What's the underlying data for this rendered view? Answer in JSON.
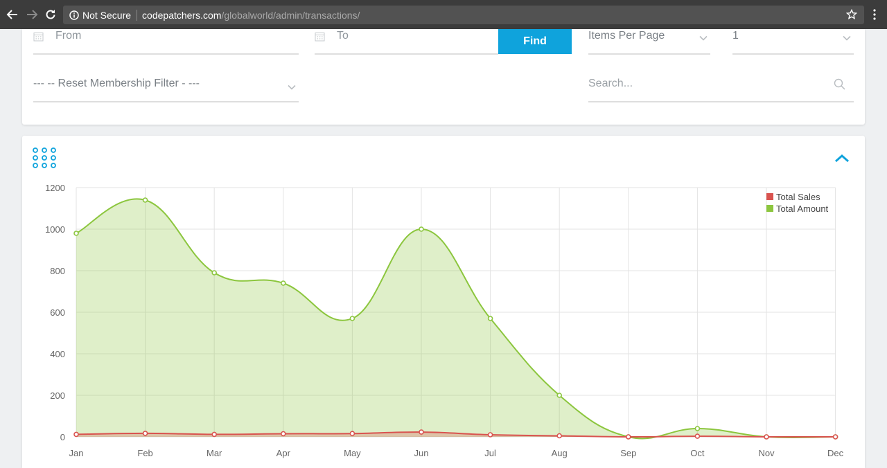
{
  "browser": {
    "secure_label": "Not Secure",
    "url_host": "codepatchers.com",
    "url_path": "/globalworld/admin/transactions/"
  },
  "filters": {
    "from_placeholder": "From",
    "to_placeholder": "To",
    "find_label": "Find",
    "items_per_page_label": "Items Per Page",
    "page_value": "1",
    "membership_filter": "--- -- Reset Membership Filter - ---",
    "search_placeholder": "Search..."
  },
  "colors": {
    "accent": "#0fa3dc",
    "total_sales": "#d9534f",
    "total_amount": "#8cc63e"
  },
  "icons": [
    "back-icon",
    "forward-icon",
    "reload-icon",
    "info-icon",
    "star-icon",
    "menu-icon",
    "calendar-icon",
    "chevron-down-icon",
    "search-icon",
    "grid-icon",
    "chevron-up-icon"
  ],
  "chart_data": {
    "type": "area",
    "categories": [
      "Jan",
      "Feb",
      "Mar",
      "Apr",
      "May",
      "Jun",
      "Jul",
      "Aug",
      "Sep",
      "Oct",
      "Nov",
      "Dec"
    ],
    "series": [
      {
        "name": "Total Sales",
        "color": "#d9534f",
        "values": [
          12,
          17,
          12,
          15,
          16,
          23,
          10,
          5,
          0,
          3,
          0,
          0
        ]
      },
      {
        "name": "Total Amount",
        "color": "#8cc63e",
        "values": [
          980,
          1140,
          790,
          740,
          570,
          1000,
          570,
          200,
          0,
          40,
          0,
          0
        ]
      }
    ],
    "yticks": [
      0,
      200,
      400,
      600,
      800,
      1000,
      1200
    ],
    "ylim": [
      0,
      1200
    ],
    "grid": true,
    "legend": "top-right"
  }
}
